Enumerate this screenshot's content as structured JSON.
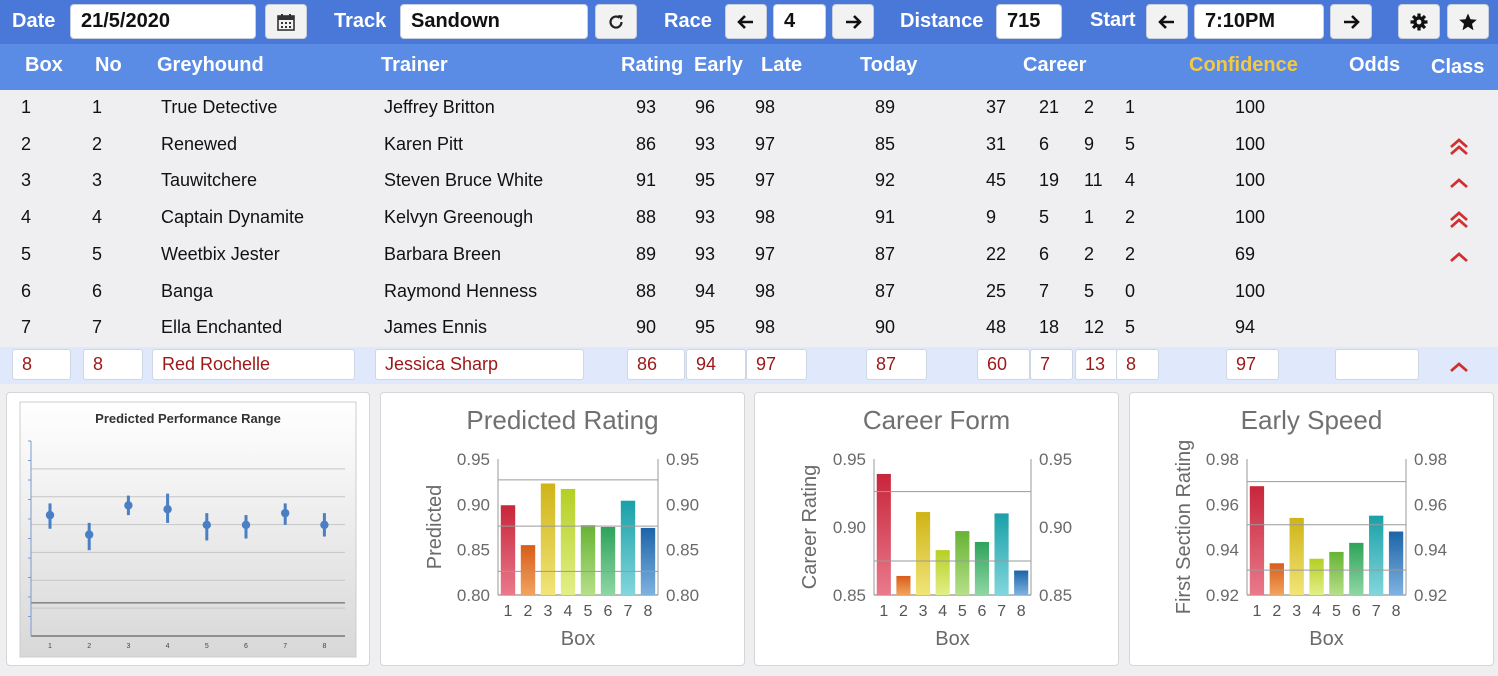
{
  "toolbar": {
    "date_label": "Date",
    "date_value": "21/5/2020",
    "track_label": "Track",
    "track_value": "Sandown",
    "race_label": "Race",
    "race_value": "4",
    "distance_label": "Distance",
    "distance_value": "715",
    "start_label": "Start",
    "start_value": "7:10PM",
    "icons": [
      "calendar-icon",
      "refresh-icon",
      "arrow-left-icon",
      "arrow-right-icon",
      "gear-icon",
      "star-icon"
    ]
  },
  "columns": {
    "box": "Box",
    "no": "No",
    "greyhound": "Greyhound",
    "trainer": "Trainer",
    "rating": "Rating",
    "early": "Early",
    "late": "Late",
    "today": "Today",
    "career": "Career",
    "confidence": "Confidence",
    "odds": "Odds",
    "class": "Class"
  },
  "colors": {
    "toolbar_bg": "#4a78d8",
    "header_bg": "#5a8ce6",
    "confidence_header": "#f5c842",
    "selected_text": "#9c1818",
    "class_arrow": "#d03030"
  },
  "rows": [
    {
      "box": "1",
      "no": "1",
      "greyhound": "True Detective",
      "trainer": "Jeffrey Britton",
      "rating": "93",
      "early": "96",
      "late": "98",
      "today": "89",
      "c1": "37",
      "c2": "21",
      "c3": "2",
      "c4": "1",
      "confidence": "100",
      "odds": "",
      "class": "none"
    },
    {
      "box": "2",
      "no": "2",
      "greyhound": "Renewed",
      "trainer": "Karen Pitt",
      "rating": "86",
      "early": "93",
      "late": "97",
      "today": "85",
      "c1": "31",
      "c2": "6",
      "c3": "9",
      "c4": "5",
      "confidence": "100",
      "odds": "",
      "class": "double-up"
    },
    {
      "box": "3",
      "no": "3",
      "greyhound": "Tauwitchere",
      "trainer": "Steven Bruce White",
      "rating": "91",
      "early": "95",
      "late": "97",
      "today": "92",
      "c1": "45",
      "c2": "19",
      "c3": "11",
      "c4": "4",
      "confidence": "100",
      "odds": "",
      "class": "up"
    },
    {
      "box": "4",
      "no": "4",
      "greyhound": "Captain Dynamite",
      "trainer": "Kelvyn Greenough",
      "rating": "88",
      "early": "93",
      "late": "98",
      "today": "91",
      "c1": "9",
      "c2": "5",
      "c3": "1",
      "c4": "2",
      "confidence": "100",
      "odds": "",
      "class": "double-up"
    },
    {
      "box": "5",
      "no": "5",
      "greyhound": "Weetbix Jester",
      "trainer": "Barbara Breen",
      "rating": "89",
      "early": "93",
      "late": "97",
      "today": "87",
      "c1": "22",
      "c2": "6",
      "c3": "2",
      "c4": "2",
      "confidence": "69",
      "odds": "",
      "class": "up"
    },
    {
      "box": "6",
      "no": "6",
      "greyhound": "Banga",
      "trainer": "Raymond Henness",
      "rating": "88",
      "early": "94",
      "late": "98",
      "today": "87",
      "c1": "25",
      "c2": "7",
      "c3": "5",
      "c4": "0",
      "confidence": "100",
      "odds": "",
      "class": "none"
    },
    {
      "box": "7",
      "no": "7",
      "greyhound": "Ella Enchanted",
      "trainer": "James Ennis",
      "rating": "90",
      "early": "95",
      "late": "98",
      "today": "90",
      "c1": "48",
      "c2": "18",
      "c3": "12",
      "c4": "5",
      "confidence": "94",
      "odds": "",
      "class": "none"
    },
    {
      "box": "8",
      "no": "8",
      "greyhound": "Red Rochelle",
      "trainer": "Jessica Sharp",
      "rating": "86",
      "early": "94",
      "late": "97",
      "today": "87",
      "c1": "60",
      "c2": "7",
      "c3": "13",
      "c4": "8",
      "confidence": "97",
      "odds": "",
      "class": "up"
    }
  ],
  "chart_data": [
    {
      "type": "scatter",
      "title": "Predicted Performance Range",
      "x": [
        1,
        2,
        3,
        4,
        5,
        6,
        7,
        8
      ],
      "y": [
        0.62,
        0.52,
        0.67,
        0.65,
        0.57,
        0.57,
        0.63,
        0.57
      ],
      "y_low": [
        0.55,
        0.44,
        0.62,
        0.58,
        0.49,
        0.5,
        0.57,
        0.51
      ],
      "y_high": [
        0.68,
        0.58,
        0.72,
        0.73,
        0.63,
        0.62,
        0.68,
        0.63
      ],
      "ylim": [
        0,
        1
      ],
      "grid": true,
      "color": "#4a7fc4"
    },
    {
      "type": "bar",
      "title": "Predicted Rating",
      "xlabel": "Box",
      "ylabel": "Predicted",
      "categories": [
        "1",
        "2",
        "3",
        "4",
        "5",
        "6",
        "7",
        "8"
      ],
      "values": [
        0.899,
        0.855,
        0.923,
        0.917,
        0.877,
        0.875,
        0.904,
        0.874
      ],
      "ylim": [
        0.8,
        0.95
      ],
      "yticks": [
        "0.95",
        "0.90",
        "0.85",
        "0.80"
      ],
      "grid_lines": [
        0.927,
        0.876,
        0.826
      ],
      "grid": true
    },
    {
      "type": "bar",
      "title": "Career Form",
      "xlabel": "Box",
      "ylabel": "Career Rating",
      "categories": [
        "1",
        "2",
        "3",
        "4",
        "5",
        "6",
        "7",
        "8"
      ],
      "values": [
        0.939,
        0.864,
        0.911,
        0.883,
        0.897,
        0.889,
        0.91,
        0.868
      ],
      "ylim": [
        0.85,
        0.95
      ],
      "yticks": [
        "0.95",
        "0.90",
        "0.85"
      ],
      "grid_lines": [
        0.926,
        0.875
      ],
      "grid": true
    },
    {
      "type": "bar",
      "title": "Early Speed",
      "xlabel": "Box",
      "ylabel": "First Section Rating",
      "categories": [
        "1",
        "2",
        "3",
        "4",
        "5",
        "6",
        "7",
        "8"
      ],
      "values": [
        0.968,
        0.934,
        0.954,
        0.936,
        0.939,
        0.943,
        0.955,
        0.948
      ],
      "ylim": [
        0.92,
        0.98
      ],
      "yticks": [
        "0.98",
        "0.96",
        "0.94",
        "0.92"
      ],
      "grid_lines": [
        0.97,
        0.951,
        0.931
      ],
      "grid": true
    }
  ]
}
